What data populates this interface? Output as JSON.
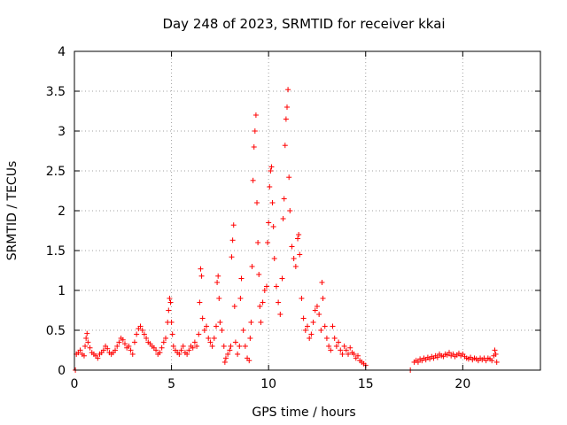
{
  "chart_data": {
    "type": "scatter",
    "title": "Day 248 of 2023, SRMTID for receiver kkai",
    "xlabel": "GPS time / hours",
    "ylabel": "SRMTID / TECUs",
    "xlim": [
      0,
      24
    ],
    "ylim": [
      0,
      4
    ],
    "xticks": [
      0,
      5,
      10,
      15,
      20
    ],
    "xtick_labels": [
      "0",
      "5",
      "10",
      "15",
      "20"
    ],
    "yticks": [
      0,
      0.5,
      1,
      1.5,
      2,
      2.5,
      3,
      3.5,
      4
    ],
    "ytick_labels": [
      "0",
      "0.5",
      "1",
      "1.5",
      "2",
      "2.5",
      "3",
      "3.5",
      "4"
    ],
    "grid": true,
    "marker": "+",
    "color": "#ff0000",
    "series": [
      {
        "name": "SRMTID",
        "points": [
          [
            0.05,
            0.0
          ],
          [
            0.1,
            0.2
          ],
          [
            0.2,
            0.22
          ],
          [
            0.3,
            0.25
          ],
          [
            0.4,
            0.2
          ],
          [
            0.5,
            0.18
          ],
          [
            0.55,
            0.3
          ],
          [
            0.6,
            0.4
          ],
          [
            0.65,
            0.46
          ],
          [
            0.7,
            0.35
          ],
          [
            0.8,
            0.28
          ],
          [
            0.9,
            0.22
          ],
          [
            1.0,
            0.2
          ],
          [
            1.1,
            0.18
          ],
          [
            1.2,
            0.15
          ],
          [
            1.3,
            0.2
          ],
          [
            1.4,
            0.22
          ],
          [
            1.5,
            0.25
          ],
          [
            1.6,
            0.3
          ],
          [
            1.7,
            0.27
          ],
          [
            1.8,
            0.22
          ],
          [
            1.9,
            0.2
          ],
          [
            2.0,
            0.22
          ],
          [
            2.1,
            0.25
          ],
          [
            2.2,
            0.3
          ],
          [
            2.3,
            0.35
          ],
          [
            2.4,
            0.4
          ],
          [
            2.5,
            0.38
          ],
          [
            2.6,
            0.33
          ],
          [
            2.7,
            0.28
          ],
          [
            2.8,
            0.3
          ],
          [
            2.9,
            0.25
          ],
          [
            3.0,
            0.2
          ],
          [
            3.1,
            0.35
          ],
          [
            3.2,
            0.45
          ],
          [
            3.3,
            0.52
          ],
          [
            3.4,
            0.55
          ],
          [
            3.5,
            0.5
          ],
          [
            3.6,
            0.45
          ],
          [
            3.7,
            0.4
          ],
          [
            3.8,
            0.35
          ],
          [
            3.9,
            0.33
          ],
          [
            4.0,
            0.3
          ],
          [
            4.1,
            0.28
          ],
          [
            4.2,
            0.25
          ],
          [
            4.3,
            0.2
          ],
          [
            4.4,
            0.22
          ],
          [
            4.5,
            0.28
          ],
          [
            4.6,
            0.35
          ],
          [
            4.7,
            0.4
          ],
          [
            4.8,
            0.6
          ],
          [
            4.85,
            0.75
          ],
          [
            4.9,
            0.9
          ],
          [
            4.95,
            0.85
          ],
          [
            5.0,
            0.6
          ],
          [
            5.05,
            0.45
          ],
          [
            5.1,
            0.3
          ],
          [
            5.2,
            0.25
          ],
          [
            5.3,
            0.22
          ],
          [
            5.4,
            0.2
          ],
          [
            5.5,
            0.25
          ],
          [
            5.6,
            0.3
          ],
          [
            5.7,
            0.22
          ],
          [
            5.8,
            0.2
          ],
          [
            5.9,
            0.25
          ],
          [
            6.0,
            0.3
          ],
          [
            6.1,
            0.28
          ],
          [
            6.2,
            0.35
          ],
          [
            6.3,
            0.3
          ],
          [
            6.4,
            0.45
          ],
          [
            6.45,
            0.85
          ],
          [
            6.5,
            1.27
          ],
          [
            6.55,
            1.18
          ],
          [
            6.6,
            0.65
          ],
          [
            6.7,
            0.5
          ],
          [
            6.8,
            0.55
          ],
          [
            6.9,
            0.4
          ],
          [
            7.0,
            0.35
          ],
          [
            7.1,
            0.3
          ],
          [
            7.2,
            0.4
          ],
          [
            7.3,
            0.55
          ],
          [
            7.35,
            1.1
          ],
          [
            7.4,
            1.18
          ],
          [
            7.45,
            0.9
          ],
          [
            7.5,
            0.6
          ],
          [
            7.6,
            0.5
          ],
          [
            7.7,
            0.3
          ],
          [
            7.75,
            0.1
          ],
          [
            7.8,
            0.15
          ],
          [
            7.9,
            0.2
          ],
          [
            8.0,
            0.25
          ],
          [
            8.05,
            0.3
          ],
          [
            8.1,
            1.42
          ],
          [
            8.15,
            1.63
          ],
          [
            8.2,
            1.82
          ],
          [
            8.25,
            0.8
          ],
          [
            8.3,
            0.35
          ],
          [
            8.4,
            0.2
          ],
          [
            8.5,
            0.3
          ],
          [
            8.55,
            0.9
          ],
          [
            8.6,
            1.15
          ],
          [
            8.7,
            0.5
          ],
          [
            8.8,
            0.3
          ],
          [
            8.9,
            0.15
          ],
          [
            9.0,
            0.12
          ],
          [
            9.05,
            0.4
          ],
          [
            9.1,
            0.6
          ],
          [
            9.15,
            1.3
          ],
          [
            9.2,
            2.38
          ],
          [
            9.25,
            2.8
          ],
          [
            9.3,
            3.0
          ],
          [
            9.35,
            3.2
          ],
          [
            9.4,
            2.1
          ],
          [
            9.45,
            1.6
          ],
          [
            9.5,
            1.2
          ],
          [
            9.55,
            0.8
          ],
          [
            9.6,
            0.6
          ],
          [
            9.7,
            0.85
          ],
          [
            9.8,
            1.0
          ],
          [
            9.9,
            1.05
          ],
          [
            9.95,
            1.6
          ],
          [
            10.0,
            1.85
          ],
          [
            10.05,
            2.3
          ],
          [
            10.1,
            2.5
          ],
          [
            10.15,
            2.55
          ],
          [
            10.2,
            2.1
          ],
          [
            10.25,
            1.8
          ],
          [
            10.3,
            1.4
          ],
          [
            10.4,
            1.05
          ],
          [
            10.5,
            0.85
          ],
          [
            10.6,
            0.7
          ],
          [
            10.7,
            1.15
          ],
          [
            10.75,
            1.9
          ],
          [
            10.8,
            2.15
          ],
          [
            10.85,
            2.82
          ],
          [
            10.9,
            3.15
          ],
          [
            10.95,
            3.3
          ],
          [
            11.0,
            3.52
          ],
          [
            11.05,
            2.42
          ],
          [
            11.1,
            2.0
          ],
          [
            11.2,
            1.55
          ],
          [
            11.3,
            1.4
          ],
          [
            11.4,
            1.3
          ],
          [
            11.5,
            1.65
          ],
          [
            11.55,
            1.7
          ],
          [
            11.6,
            1.45
          ],
          [
            11.7,
            0.9
          ],
          [
            11.8,
            0.65
          ],
          [
            11.9,
            0.5
          ],
          [
            12.0,
            0.55
          ],
          [
            12.1,
            0.4
          ],
          [
            12.2,
            0.45
          ],
          [
            12.3,
            0.6
          ],
          [
            12.4,
            0.75
          ],
          [
            12.5,
            0.8
          ],
          [
            12.6,
            0.7
          ],
          [
            12.7,
            0.5
          ],
          [
            12.75,
            1.1
          ],
          [
            12.8,
            0.9
          ],
          [
            12.9,
            0.55
          ],
          [
            13.0,
            0.4
          ],
          [
            13.1,
            0.3
          ],
          [
            13.2,
            0.25
          ],
          [
            13.3,
            0.55
          ],
          [
            13.4,
            0.4
          ],
          [
            13.5,
            0.3
          ],
          [
            13.6,
            0.35
          ],
          [
            13.7,
            0.25
          ],
          [
            13.8,
            0.2
          ],
          [
            13.9,
            0.3
          ],
          [
            14.0,
            0.25
          ],
          [
            14.1,
            0.2
          ],
          [
            14.2,
            0.28
          ],
          [
            14.3,
            0.22
          ],
          [
            14.4,
            0.2
          ],
          [
            14.5,
            0.15
          ],
          [
            14.6,
            0.18
          ],
          [
            14.7,
            0.12
          ],
          [
            14.8,
            0.1
          ],
          [
            14.9,
            0.08
          ],
          [
            15.0,
            0.06
          ],
          [
            17.3,
            0.0
          ],
          [
            17.5,
            0.1
          ],
          [
            17.6,
            0.12
          ],
          [
            17.7,
            0.1
          ],
          [
            17.8,
            0.14
          ],
          [
            17.9,
            0.12
          ],
          [
            18.0,
            0.15
          ],
          [
            18.1,
            0.13
          ],
          [
            18.2,
            0.16
          ],
          [
            18.3,
            0.14
          ],
          [
            18.4,
            0.17
          ],
          [
            18.5,
            0.15
          ],
          [
            18.6,
            0.18
          ],
          [
            18.7,
            0.16
          ],
          [
            18.8,
            0.2
          ],
          [
            18.9,
            0.18
          ],
          [
            19.0,
            0.17
          ],
          [
            19.1,
            0.2
          ],
          [
            19.2,
            0.19
          ],
          [
            19.3,
            0.22
          ],
          [
            19.4,
            0.18
          ],
          [
            19.5,
            0.2
          ],
          [
            19.6,
            0.17
          ],
          [
            19.7,
            0.19
          ],
          [
            19.8,
            0.21
          ],
          [
            19.9,
            0.18
          ],
          [
            20.0,
            0.2
          ],
          [
            20.1,
            0.17
          ],
          [
            20.2,
            0.15
          ],
          [
            20.3,
            0.14
          ],
          [
            20.4,
            0.16
          ],
          [
            20.5,
            0.13
          ],
          [
            20.6,
            0.15
          ],
          [
            20.7,
            0.14
          ],
          [
            20.8,
            0.12
          ],
          [
            20.9,
            0.15
          ],
          [
            21.0,
            0.13
          ],
          [
            21.1,
            0.15
          ],
          [
            21.2,
            0.12
          ],
          [
            21.3,
            0.15
          ],
          [
            21.4,
            0.14
          ],
          [
            21.5,
            0.12
          ],
          [
            21.6,
            0.18
          ],
          [
            21.65,
            0.25
          ],
          [
            21.7,
            0.2
          ],
          [
            21.75,
            0.1
          ]
        ]
      }
    ]
  }
}
